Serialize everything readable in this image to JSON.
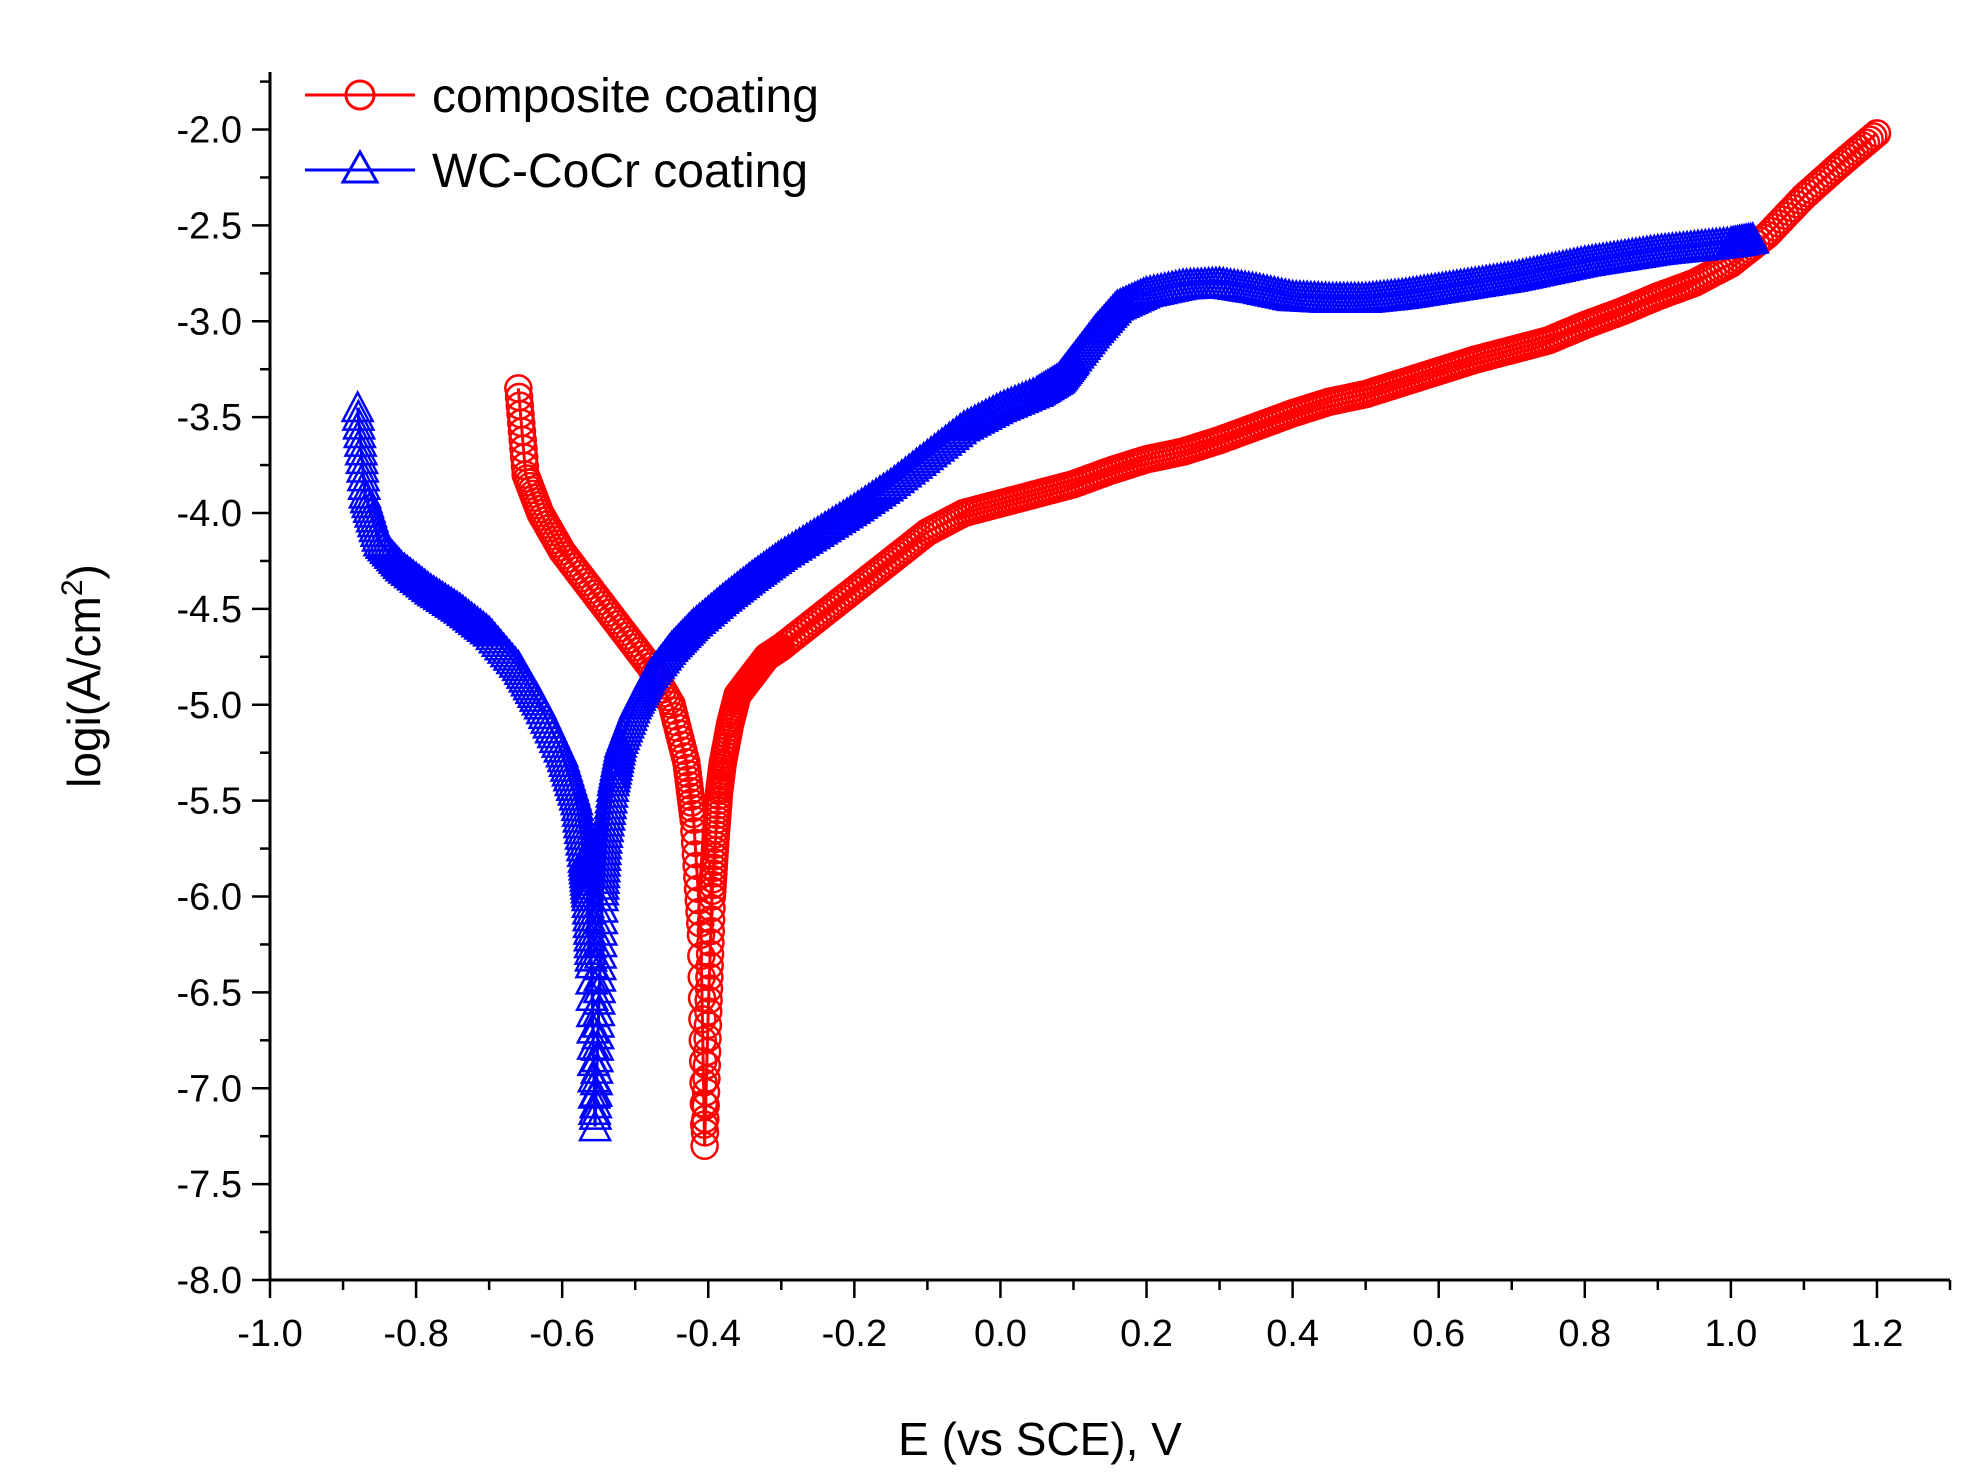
{
  "chart_data": {
    "type": "line",
    "title": "",
    "xlabel": "E (vs SCE), V",
    "ylabel_main": "logi(A/cm",
    "ylabel_sup": "2",
    "ylabel_end": ")",
    "xlim": [
      -1.0,
      1.3
    ],
    "ylim": [
      -8.0,
      -1.7
    ],
    "xticks": [
      -1.0,
      -0.8,
      -0.6,
      -0.4,
      -0.2,
      0.0,
      0.2,
      0.4,
      0.6,
      0.8,
      1.0,
      1.2
    ],
    "yticks": [
      -8.0,
      -7.5,
      -7.0,
      -6.5,
      -6.0,
      -5.5,
      -5.0,
      -4.5,
      -4.0,
      -3.5,
      -3.0,
      -2.5,
      -2.0
    ],
    "xtick_labels": [
      "-1.0",
      "-0.8",
      "-0.6",
      "-0.4",
      "-0.2",
      "0.0",
      "0.2",
      "0.4",
      "0.6",
      "0.8",
      "1.0",
      "1.2"
    ],
    "ytick_labels": [
      "-8.0",
      "-7.5",
      "-7.0",
      "-6.5",
      "-6.0",
      "-5.5",
      "-5.0",
      "-4.5",
      "-4.0",
      "-3.5",
      "-3.0",
      "-2.5",
      "-2.0"
    ],
    "legend_position": "top-left",
    "series": [
      {
        "name": "composite coating",
        "color": "#ff0000",
        "marker": "circle",
        "x": [
          -0.66,
          -0.65,
          -0.63,
          -0.6,
          -0.56,
          -0.52,
          -0.48,
          -0.45,
          -0.43,
          -0.42,
          -0.41,
          -0.405,
          -0.4,
          -0.395,
          -0.39,
          -0.385,
          -0.38,
          -0.37,
          -0.36,
          -0.34,
          -0.32,
          -0.3,
          -0.25,
          -0.2,
          -0.15,
          -0.1,
          -0.05,
          0.0,
          0.05,
          0.1,
          0.15,
          0.2,
          0.25,
          0.3,
          0.35,
          0.4,
          0.45,
          0.5,
          0.55,
          0.6,
          0.65,
          0.7,
          0.75,
          0.8,
          0.85,
          0.9,
          0.95,
          1.0,
          1.05,
          1.1,
          1.15,
          1.2
        ],
        "y": [
          -3.35,
          -3.8,
          -4.0,
          -4.2,
          -4.4,
          -4.6,
          -4.8,
          -5.0,
          -5.3,
          -5.6,
          -6.2,
          -7.3,
          -6.6,
          -6.0,
          -5.7,
          -5.45,
          -5.3,
          -5.1,
          -4.95,
          -4.85,
          -4.75,
          -4.7,
          -4.55,
          -4.4,
          -4.25,
          -4.1,
          -4.0,
          -3.95,
          -3.9,
          -3.85,
          -3.78,
          -3.72,
          -3.68,
          -3.62,
          -3.55,
          -3.48,
          -3.42,
          -3.38,
          -3.32,
          -3.26,
          -3.2,
          -3.15,
          -3.1,
          -3.02,
          -2.95,
          -2.87,
          -2.8,
          -2.7,
          -2.55,
          -2.35,
          -2.18,
          -2.02
        ]
      },
      {
        "name": "WC-CoCr coating",
        "color": "#0000ff",
        "marker": "triangle",
        "x": [
          -0.88,
          -0.87,
          -0.85,
          -0.82,
          -0.78,
          -0.74,
          -0.7,
          -0.66,
          -0.63,
          -0.6,
          -0.58,
          -0.57,
          -0.565,
          -0.56,
          -0.555,
          -0.55,
          -0.545,
          -0.54,
          -0.53,
          -0.52,
          -0.5,
          -0.48,
          -0.45,
          -0.42,
          -0.38,
          -0.34,
          -0.3,
          -0.25,
          -0.2,
          -0.15,
          -0.1,
          -0.05,
          0.0,
          0.05,
          0.08,
          0.1,
          0.13,
          0.16,
          0.2,
          0.25,
          0.3,
          0.35,
          0.4,
          0.45,
          0.5,
          0.55,
          0.6,
          0.65,
          0.7,
          0.75,
          0.8,
          0.85,
          0.9,
          0.95,
          1.0,
          1.03
        ],
        "y": [
          -3.45,
          -3.9,
          -4.15,
          -4.28,
          -4.4,
          -4.5,
          -4.62,
          -4.8,
          -5.0,
          -5.25,
          -5.5,
          -5.8,
          -6.0,
          -6.35,
          -7.2,
          -6.6,
          -6.0,
          -5.7,
          -5.4,
          -5.2,
          -5.0,
          -4.85,
          -4.7,
          -4.58,
          -4.45,
          -4.33,
          -4.22,
          -4.1,
          -3.98,
          -3.85,
          -3.7,
          -3.55,
          -3.45,
          -3.37,
          -3.3,
          -3.2,
          -3.05,
          -2.92,
          -2.85,
          -2.81,
          -2.8,
          -2.83,
          -2.87,
          -2.88,
          -2.88,
          -2.86,
          -2.83,
          -2.8,
          -2.77,
          -2.73,
          -2.69,
          -2.66,
          -2.63,
          -2.61,
          -2.59,
          -2.57
        ]
      }
    ]
  }
}
